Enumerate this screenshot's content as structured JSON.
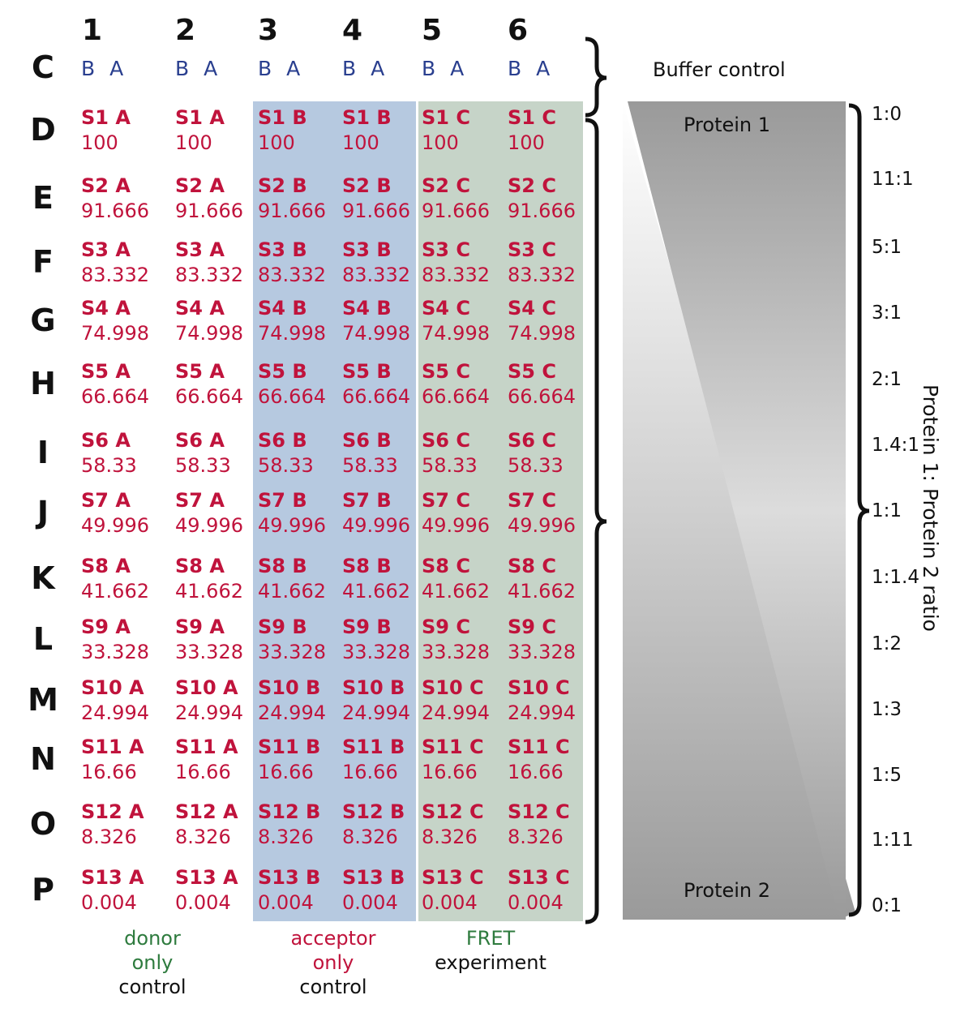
{
  "columns": [
    "1",
    "2",
    "3",
    "4",
    "5",
    "6"
  ],
  "header_row": {
    "label": "C",
    "cells": [
      "B A",
      "B A",
      "B A",
      "B A",
      "B A",
      "B A"
    ]
  },
  "buffer_control_label": "Buffer control",
  "rows": [
    {
      "label": "D",
      "cells": [
        "S1 A",
        "S1 A",
        "S1 B",
        "S1 B",
        "S1 C",
        "S1 C"
      ],
      "value": "100",
      "ratio": "1:0"
    },
    {
      "label": "E",
      "cells": [
        "S2 A",
        "S2 A",
        "S2 B",
        "S2 B",
        "S2 C",
        "S2 C"
      ],
      "value": "91.666",
      "ratio": "11:1"
    },
    {
      "label": "F",
      "cells": [
        "S3 A",
        "S3 A",
        "S3 B",
        "S3 B",
        "S3 C",
        "S3 C"
      ],
      "value": "83.332",
      "ratio": "5:1"
    },
    {
      "label": "G",
      "cells": [
        "S4 A",
        "S4 A",
        "S4 B",
        "S4 B",
        "S4 C",
        "S4 C"
      ],
      "value": "74.998",
      "ratio": "3:1"
    },
    {
      "label": "H",
      "cells": [
        "S5 A",
        "S5 A",
        "S5 B",
        "S5 B",
        "S5 C",
        "S5 C"
      ],
      "value": "66.664",
      "ratio": "2:1"
    },
    {
      "label": "I",
      "cells": [
        "S6 A",
        "S6 A",
        "S6 B",
        "S6 B",
        "S6 C",
        "S6 C"
      ],
      "value": "58.33",
      "ratio": "1.4:1"
    },
    {
      "label": "J",
      "cells": [
        "S7 A",
        "S7 A",
        "S7 B",
        "S7 B",
        "S7 C",
        "S7 C"
      ],
      "value": "49.996",
      "ratio": "1:1"
    },
    {
      "label": "K",
      "cells": [
        "S8 A",
        "S8 A",
        "S8 B",
        "S8 B",
        "S8 C",
        "S8 C"
      ],
      "value": "41.662",
      "ratio": "1:1.4"
    },
    {
      "label": "L",
      "cells": [
        "S9 A",
        "S9 A",
        "S9 B",
        "S9 B",
        "S9 C",
        "S9 C"
      ],
      "value": "33.328",
      "ratio": "1:2"
    },
    {
      "label": "M",
      "cells": [
        "S10 A",
        "S10 A",
        "S10 B",
        "S10 B",
        "S10 C",
        "S10 C"
      ],
      "value": "24.994",
      "ratio": "1:3"
    },
    {
      "label": "N",
      "cells": [
        "S11 A",
        "S11 A",
        "S11 B",
        "S11 B",
        "S11 C",
        "S11 C"
      ],
      "value": "16.66",
      "ratio": "1:5"
    },
    {
      "label": "O",
      "cells": [
        "S12 A",
        "S12 A",
        "S12 B",
        "S12 B",
        "S12 C",
        "S12 C"
      ],
      "value": "8.326",
      "ratio": "1:11"
    },
    {
      "label": "P",
      "cells": [
        "S13 A",
        "S13 A",
        "S13 B",
        "S13 B",
        "S13 C",
        "S13 C"
      ],
      "value": "0.004",
      "ratio": "0:1"
    }
  ],
  "gradient": {
    "top_label": "Protein 1",
    "bottom_label": "Protein 2"
  },
  "ratio_axis_label": "Protein 1: Protein 2 ratio",
  "footer": {
    "donor": {
      "line1": "donor",
      "line2": "only",
      "line3": "control"
    },
    "acceptor": {
      "line1": "acceptor",
      "line2": "only",
      "line3": "control"
    },
    "fret": {
      "line1": "FRET",
      "line2": "experiment"
    }
  },
  "colors": {
    "sample_text": "#c0133c",
    "ba_text": "#2a3f8f",
    "acceptor_band": "#b6c9e0",
    "fret_band": "#c6d4c8",
    "footer_green": "#2e7b3e"
  }
}
